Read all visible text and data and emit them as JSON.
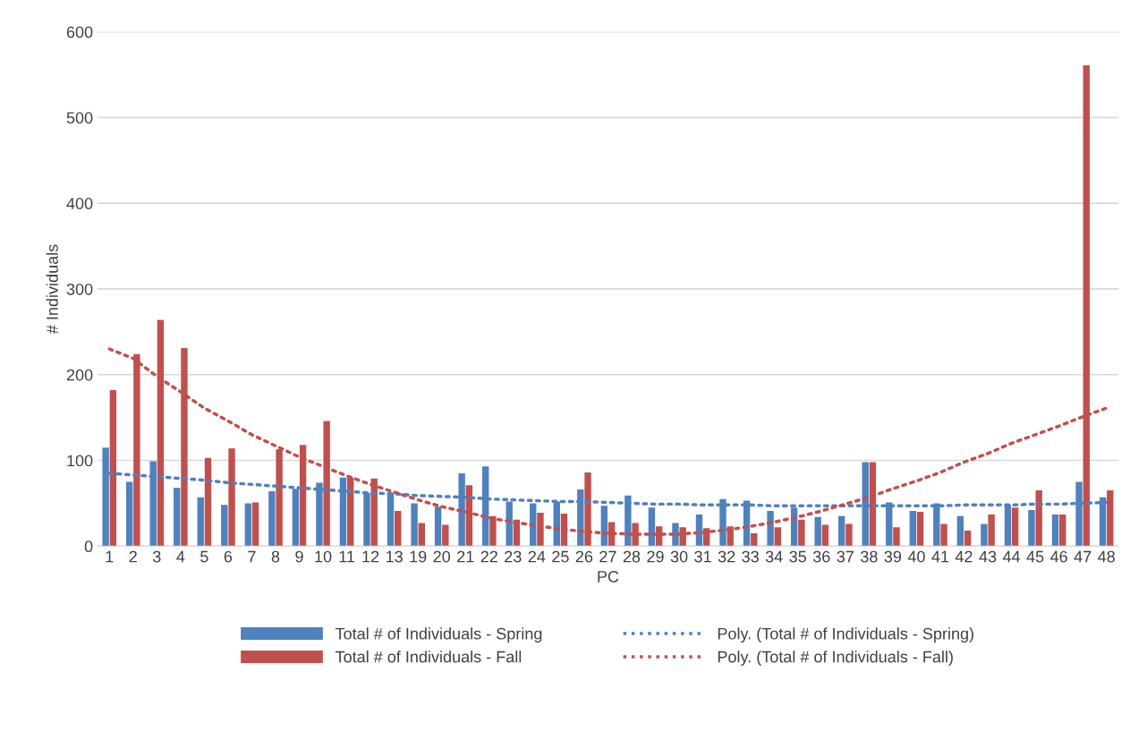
{
  "chart_data": {
    "type": "bar",
    "xlabel": "PC",
    "ylabel": "# Individuals",
    "categories": [
      "1",
      "2",
      "3",
      "4",
      "5",
      "6",
      "7",
      "8",
      "9",
      "10",
      "11",
      "12",
      "13",
      "19",
      "20",
      "21",
      "22",
      "23",
      "24",
      "25",
      "26",
      "27",
      "28",
      "29",
      "30",
      "31",
      "32",
      "33",
      "34",
      "35",
      "36",
      "37",
      "38",
      "39",
      "40",
      "41",
      "42",
      "43",
      "44",
      "45",
      "46",
      "47",
      "48"
    ],
    "series": [
      {
        "name": "Total # of Individuals - Spring",
        "color": "#4f81bd",
        "values": [
          115,
          75,
          99,
          68,
          57,
          48,
          50,
          64,
          67,
          74,
          80,
          62,
          62,
          50,
          46,
          85,
          93,
          52,
          50,
          52,
          66,
          47,
          59,
          45,
          27,
          37,
          55,
          53,
          41,
          45,
          34,
          35,
          98,
          51,
          41,
          50,
          35,
          26,
          48,
          42,
          37,
          75,
          57
        ]
      },
      {
        "name": "Total # of Individuals - Fall",
        "color": "#c0504d",
        "values": [
          182,
          224,
          264,
          231,
          103,
          114,
          51,
          113,
          118,
          146,
          80,
          79,
          41,
          27,
          25,
          71,
          35,
          31,
          39,
          38,
          86,
          28,
          27,
          23,
          22,
          21,
          23,
          15,
          22,
          31,
          25,
          26,
          98,
          22,
          40,
          26,
          18,
          37,
          45,
          65,
          37,
          561,
          65
        ]
      },
      {
        "name": "Poly. (Total # of Individuals - Spring)",
        "type": "line",
        "line_style": "dotted",
        "color": "#4f81bd",
        "x": [
          "1",
          "2",
          "3",
          "4",
          "5",
          "6",
          "7",
          "8",
          "9",
          "10",
          "11",
          "12",
          "13",
          "19",
          "20",
          "21",
          "22",
          "23",
          "24",
          "25",
          "26",
          "27",
          "28",
          "29",
          "30",
          "31",
          "32",
          "33",
          "34",
          "35",
          "36",
          "37",
          "38",
          "39",
          "40",
          "41",
          "42",
          "43",
          "44",
          "45",
          "46",
          "47",
          "48"
        ],
        "values": [
          85,
          83,
          81,
          79,
          77,
          74,
          72,
          70,
          68,
          66,
          64,
          62,
          61,
          59,
          58,
          57,
          55,
          54,
          53,
          52,
          52,
          51,
          50,
          49,
          49,
          48,
          48,
          48,
          47,
          47,
          47,
          47,
          47,
          47,
          47,
          47,
          48,
          48,
          48,
          49,
          49,
          50,
          51
        ]
      },
      {
        "name": "Poly. (Total # of Individuals - Fall)",
        "type": "line",
        "line_style": "dotted",
        "color": "#c0504d",
        "x": [
          "1",
          "2",
          "3",
          "4",
          "5",
          "6",
          "7",
          "8",
          "9",
          "10",
          "11",
          "12",
          "13",
          "19",
          "20",
          "21",
          "22",
          "23",
          "24",
          "25",
          "26",
          "27",
          "28",
          "29",
          "30",
          "31",
          "32",
          "33",
          "34",
          "35",
          "36",
          "37",
          "38",
          "39",
          "40",
          "41",
          "42",
          "43",
          "44",
          "45",
          "46",
          "47",
          "48"
        ],
        "values": [
          230,
          219,
          198,
          180,
          161,
          146,
          130,
          117,
          104,
          93,
          82,
          72,
          63,
          54,
          46,
          40,
          33,
          28,
          24,
          20,
          17,
          15,
          14,
          14,
          14,
          16,
          19,
          23,
          28,
          34,
          41,
          49,
          57,
          67,
          76,
          86,
          98,
          108,
          120,
          130,
          140,
          151,
          161
        ]
      }
    ],
    "ylim": [
      0,
      600
    ],
    "yticks": [
      0,
      100,
      200,
      300,
      400,
      500,
      600
    ],
    "grid": "y",
    "legend": "bottom"
  }
}
